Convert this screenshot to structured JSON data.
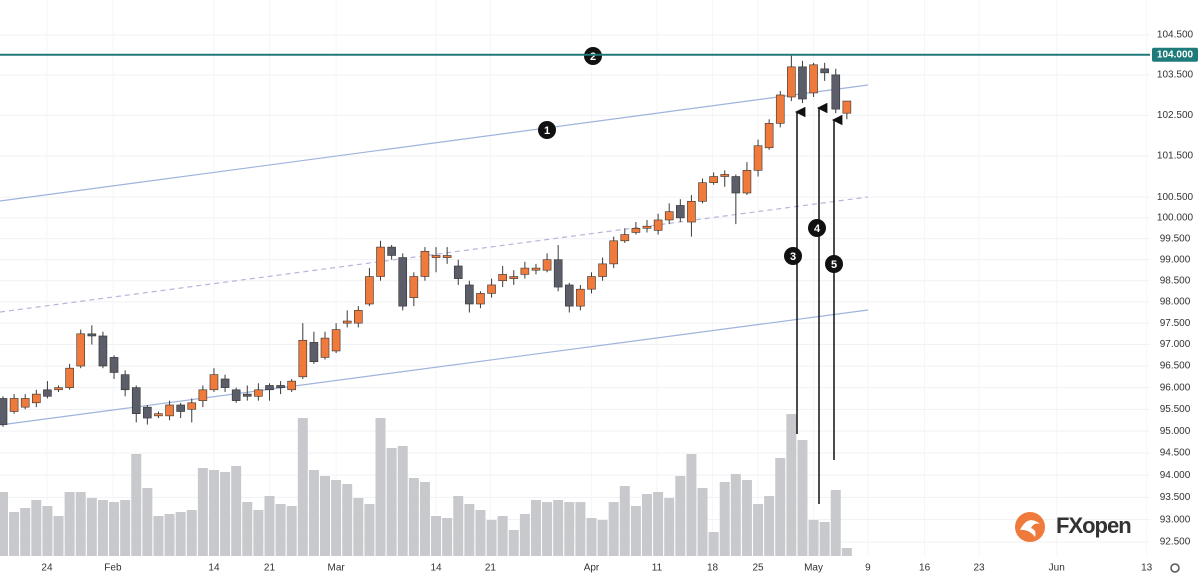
{
  "chart_data": {
    "type": "candlestick",
    "xlim": [
      -0.27,
      103.3
    ],
    "xticks": [
      {
        "value": 3.96,
        "label": "24"
      },
      {
        "value": 9.9,
        "label": "Feb"
      },
      {
        "value": 19,
        "label": "14"
      },
      {
        "value": 24,
        "label": "21"
      },
      {
        "value": 30,
        "label": "Mar"
      },
      {
        "value": 39,
        "label": "14"
      },
      {
        "value": 43.9,
        "label": "21"
      },
      {
        "value": 53,
        "label": "Apr"
      },
      {
        "value": 58.9,
        "label": "11"
      },
      {
        "value": 63.9,
        "label": "18"
      },
      {
        "value": 68,
        "label": "25"
      },
      {
        "value": 73,
        "label": "May"
      },
      {
        "value": 77.9,
        "label": "9"
      },
      {
        "value": 83,
        "label": "16"
      },
      {
        "value": 87.9,
        "label": "23"
      },
      {
        "value": 94.9,
        "label": "Jun"
      },
      {
        "value": 103,
        "label": "13"
      }
    ],
    "ylim": [
      92.19,
      105.38
    ],
    "log_scale": true,
    "yticks": [
      {
        "value": 104.5,
        "label": "104.500"
      },
      {
        "value": 104,
        "label": "104.000"
      },
      {
        "value": 103.5,
        "label": "103.500"
      },
      {
        "value": 102.5,
        "label": "102.500"
      },
      {
        "value": 101.5,
        "label": "101.500"
      },
      {
        "value": 100.5,
        "label": "100.500"
      },
      {
        "value": 100,
        "label": "100.000"
      },
      {
        "value": 99.5,
        "label": "99.500"
      },
      {
        "value": 99,
        "label": "99.000"
      },
      {
        "value": 98.5,
        "label": "98.500"
      },
      {
        "value": 98,
        "label": "98.000"
      },
      {
        "value": 97.5,
        "label": "97.500"
      },
      {
        "value": 97,
        "label": "97.000"
      },
      {
        "value": 96.5,
        "label": "96.500"
      },
      {
        "value": 96,
        "label": "96.000"
      },
      {
        "value": 95.5,
        "label": "95.500"
      },
      {
        "value": 95,
        "label": "95.000"
      },
      {
        "value": 94.5,
        "label": "94.500"
      },
      {
        "value": 94,
        "label": "94.000"
      },
      {
        "value": 93.5,
        "label": "93.500"
      },
      {
        "value": 93,
        "label": "93.000"
      },
      {
        "value": 92.5,
        "label": "92.500"
      }
    ],
    "grid": true,
    "price_line": {
      "value": 104,
      "color": "#1f7a7a"
    },
    "up_color": "#ef7a3b",
    "down_color": "#5b5e69",
    "volume_color": "#c8c9cd",
    "volume_lim": [
      0,
      556
    ],
    "open": [
      95.75,
      95.45,
      95.55,
      95.65,
      95.95,
      95.95,
      96.0,
      96.5,
      97.25,
      97.2,
      96.7,
      96.3,
      96.0,
      95.55,
      95.35,
      95.35,
      95.6,
      95.5,
      95.7,
      95.95,
      96.2,
      95.95,
      95.85,
      95.8,
      96.05,
      96.05,
      95.95,
      96.25,
      97.05,
      96.7,
      96.85,
      97.5,
      97.5,
      97.95,
      98.6,
      99.3,
      99.05,
      98.1,
      98.6,
      99.05,
      99.05,
      98.85,
      98.4,
      97.95,
      98.2,
      98.5,
      98.55,
      98.65,
      98.75,
      98.75,
      99.0,
      98.4,
      97.9,
      98.3,
      98.6,
      98.9,
      99.45,
      99.65,
      99.75,
      99.7,
      99.95,
      100.3,
      99.9,
      100.4,
      100.85,
      101.0,
      101.0,
      100.6,
      101.15,
      101.7,
      102.3,
      102.95,
      103.7,
      103.05,
      103.65,
      103.5,
      102.55
    ],
    "high": [
      95.8,
      95.85,
      95.85,
      95.95,
      96.15,
      96.05,
      96.55,
      97.35,
      97.45,
      97.3,
      96.75,
      96.4,
      96.05,
      95.6,
      95.45,
      95.7,
      95.65,
      95.75,
      96.05,
      96.45,
      96.3,
      96.0,
      96.05,
      96.1,
      96.1,
      96.15,
      96.2,
      97.5,
      97.3,
      97.3,
      97.5,
      97.8,
      97.9,
      98.8,
      99.45,
      99.35,
      99.15,
      98.7,
      99.3,
      99.3,
      99.3,
      99.0,
      98.5,
      98.25,
      98.55,
      98.85,
      98.75,
      98.95,
      98.9,
      99.15,
      99.35,
      98.45,
      98.4,
      98.7,
      99.05,
      99.55,
      99.75,
      99.9,
      99.95,
      100.1,
      100.35,
      100.45,
      100.55,
      100.95,
      101.1,
      101.15,
      101.05,
      101.35,
      101.9,
      102.4,
      103.1,
      104.0,
      103.85,
      103.8,
      103.8,
      103.65,
      102.85
    ],
    "low": [
      95.1,
      95.4,
      95.5,
      95.55,
      95.75,
      95.9,
      95.95,
      96.45,
      97.0,
      96.45,
      96.2,
      95.8,
      95.2,
      95.15,
      95.3,
      95.25,
      95.3,
      95.2,
      95.55,
      95.9,
      95.9,
      95.65,
      95.7,
      95.7,
      95.7,
      95.85,
      95.9,
      96.2,
      96.55,
      96.65,
      96.8,
      97.4,
      97.4,
      97.9,
      98.5,
      99.0,
      97.8,
      97.9,
      98.5,
      98.7,
      98.9,
      98.4,
      97.75,
      97.85,
      98.1,
      98.35,
      98.4,
      98.55,
      98.65,
      98.7,
      98.25,
      97.75,
      97.8,
      98.2,
      98.5,
      98.8,
      99.4,
      99.6,
      99.65,
      99.6,
      99.85,
      99.9,
      99.55,
      100.35,
      100.8,
      100.75,
      99.85,
      100.55,
      101.0,
      101.65,
      102.2,
      102.85,
      102.8,
      102.95,
      103.35,
      102.55,
      102.4
    ],
    "close": [
      95.15,
      95.75,
      95.75,
      95.85,
      95.8,
      96.0,
      96.45,
      97.25,
      97.2,
      96.5,
      96.35,
      95.95,
      95.4,
      95.3,
      95.4,
      95.6,
      95.45,
      95.65,
      95.95,
      96.3,
      96.0,
      95.7,
      95.8,
      95.95,
      95.95,
      96.0,
      96.15,
      97.1,
      96.6,
      97.15,
      97.35,
      97.55,
      97.8,
      98.6,
      99.3,
      99.1,
      97.9,
      98.6,
      99.2,
      99.1,
      99.1,
      98.55,
      97.95,
      98.2,
      98.4,
      98.65,
      98.6,
      98.8,
      98.8,
      99.0,
      98.35,
      97.9,
      98.3,
      98.6,
      98.9,
      99.45,
      99.6,
      99.75,
      99.8,
      99.95,
      100.15,
      100.0,
      100.4,
      100.85,
      101.0,
      101.05,
      100.6,
      101.15,
      101.75,
      102.3,
      103.0,
      103.7,
      102.9,
      103.75,
      103.55,
      102.65,
      102.85
    ],
    "volume": [
      64,
      44,
      48,
      56,
      50,
      40,
      64,
      64,
      58,
      56,
      54,
      56,
      102,
      68,
      40,
      42,
      44,
      46,
      88,
      86,
      84,
      90,
      54,
      46,
      60,
      52,
      50,
      138,
      86,
      80,
      76,
      72,
      58,
      52,
      138,
      108,
      110,
      78,
      74,
      40,
      38,
      60,
      52,
      46,
      36,
      40,
      26,
      42,
      56,
      54,
      56,
      54,
      54,
      38,
      36,
      54,
      70,
      50,
      62,
      64,
      58,
      80,
      102,
      68,
      24,
      74,
      82,
      76,
      52,
      60,
      98,
      142,
      116,
      36,
      34,
      66,
      8
    ],
    "annotations": [
      "1",
      "2",
      "3",
      "4",
      "5"
    ],
    "logo": "FXopen"
  }
}
